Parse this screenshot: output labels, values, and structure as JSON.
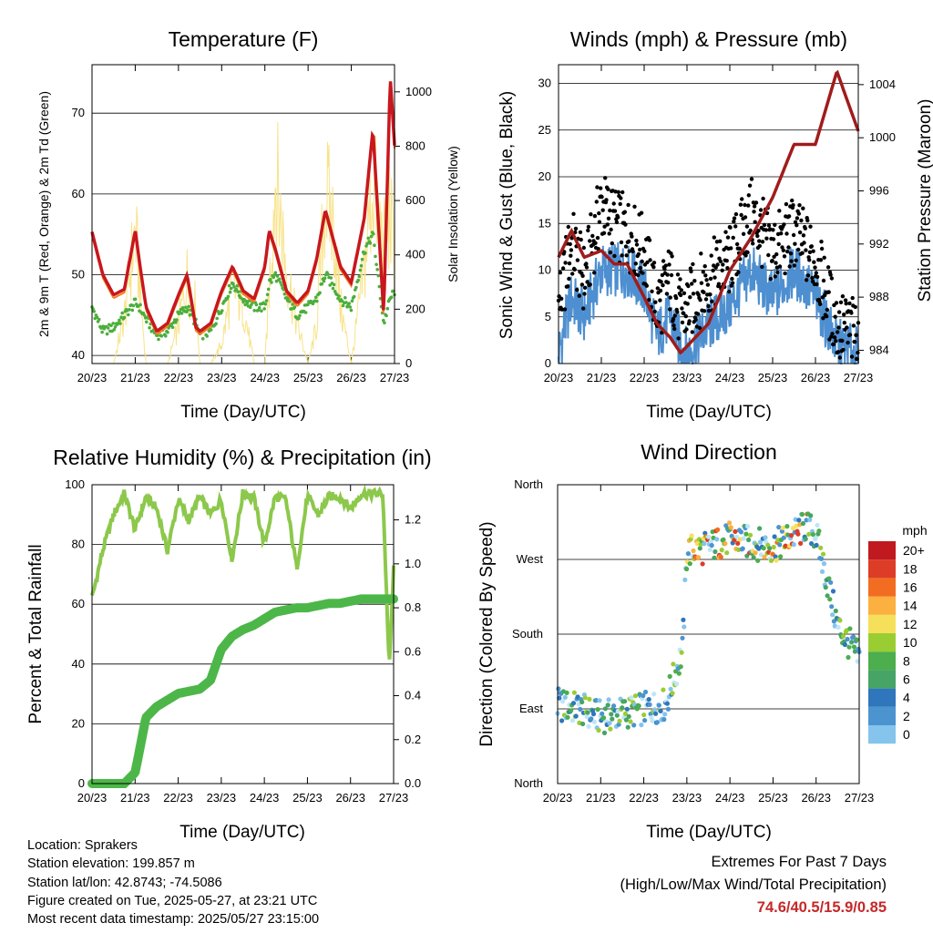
{
  "colors": {
    "temp_2m": "#c8171e",
    "temp_9m": "#f47b20",
    "dewpoint": "#4cae3c",
    "solar": "#f8e38a",
    "gust": "#000000",
    "wind": "#4d8fd0",
    "pressure": "#a01c1c",
    "rh": "#8cc84b",
    "precip": "#4cb748",
    "speed_scale": [
      "#bfe6f8",
      "#85c4ec",
      "#4c94d0",
      "#2f76bd",
      "#46a467",
      "#4cae4c",
      "#9acd32",
      "#f6e05b",
      "#fbb040",
      "#f26d21",
      "#dd3d27",
      "#c0191f",
      "#9e1a1f"
    ]
  },
  "x_ticks": [
    "20/23",
    "21/23",
    "22/23",
    "23/23",
    "24/23",
    "25/23",
    "26/23",
    "27/23"
  ],
  "charts": {
    "temperature": {
      "title": "Temperature (F)",
      "xlabel": "Time (Day/UTC)",
      "ylabel_left": "2m & 9m T (Red, Orange) & 2m Td (Green)",
      "ylabel_right": "Solar Insolation (Yellow)",
      "left_ticks": [
        "40",
        "50",
        "60",
        "70"
      ],
      "right_ticks": [
        "0",
        "200",
        "400",
        "600",
        "800",
        "1000"
      ]
    },
    "winds": {
      "title": "Winds (mph) & Pressure (mb)",
      "xlabel": "Time (Day/UTC)",
      "ylabel_left": "Sonic Wind & Gust (Blue, Black)",
      "ylabel_right": "Station Pressure (Maroon)",
      "left_ticks": [
        "0",
        "5",
        "10",
        "15",
        "20",
        "25",
        "30"
      ],
      "right_ticks": [
        "984",
        "988",
        "992",
        "996",
        "1000",
        "1004"
      ]
    },
    "humidity": {
      "title": "Relative Humidity (%) & Precipitation (in)",
      "xlabel": "Time (Day/UTC)",
      "ylabel_left": "Percent & Total Rainfall",
      "left_ticks": [
        "0",
        "20",
        "40",
        "60",
        "80",
        "100"
      ],
      "right_ticks": [
        "0.0",
        "0.2",
        "0.4",
        "0.6",
        "0.8",
        "1.0",
        "1.2"
      ]
    },
    "direction": {
      "title": "Wind Direction",
      "xlabel": "Time (Day/UTC)",
      "ylabel_left": "Direction (Colored By Speed)",
      "left_ticks": [
        "North",
        "East",
        "South",
        "West",
        "North"
      ],
      "legend_title": "mph",
      "legend_labels": [
        "0",
        "2",
        "4",
        "6",
        "8",
        "10",
        "12",
        "14",
        "16",
        "18",
        "20+"
      ]
    }
  },
  "chart_data": [
    {
      "type": "line",
      "title": "Temperature (F)",
      "x": [
        0,
        0.25,
        0.5,
        0.75,
        1,
        1.1,
        1.25,
        1.5,
        1.75,
        2,
        2.2,
        2.4,
        2.5,
        2.75,
        3,
        3.25,
        3.5,
        3.75,
        4,
        4.1,
        4.25,
        4.5,
        4.75,
        5,
        5.2,
        5.4,
        5.6,
        5.75,
        6,
        6.3,
        6.5,
        6.75,
        6.9,
        7
      ],
      "series": [
        {
          "values": [
            55.3,
            50,
            47.5,
            48.2,
            55.5,
            51.5,
            46,
            43,
            44,
            47.5,
            50,
            43.5,
            43,
            44,
            48,
            51,
            48,
            47,
            51,
            55.5,
            53,
            48,
            46.5,
            48,
            52,
            58,
            54,
            51,
            49,
            57,
            68,
            45,
            74.5,
            66
          ]
        },
        {
          "values": [
            46,
            43,
            43.5,
            45,
            46.5,
            46,
            44.5,
            42.5,
            43,
            45,
            46,
            44,
            42.5,
            43,
            46,
            49,
            47,
            46,
            46,
            49,
            50,
            47,
            45,
            46,
            47,
            50,
            48.5,
            47,
            46,
            53,
            55,
            44,
            47,
            48
          ]
        },
        {
          "values": [
            0,
            0,
            0,
            250,
            700,
            400,
            0,
            0,
            0,
            200,
            450,
            300,
            0,
            0,
            100,
            400,
            300,
            0,
            0,
            400,
            1000,
            500,
            200,
            0,
            200,
            900,
            700,
            300,
            0,
            500,
            950,
            600,
            800,
            500
          ]
        }
      ],
      "ylim": [
        39,
        76
      ],
      "y2lim": [
        0,
        1100
      ]
    },
    {
      "type": "scatter",
      "title": "Winds (mph) & Pressure (mb)",
      "x": [
        0,
        0.3,
        0.6,
        1,
        1.3,
        1.6,
        2,
        2.3,
        2.6,
        2.85,
        3,
        3.5,
        4,
        4.5,
        5,
        5.5,
        6,
        6.5,
        7
      ],
      "series": [
        {
          "values": [
            6,
            13,
            9,
            17,
            15,
            14,
            12,
            6,
            9,
            5,
            6,
            9,
            11,
            16,
            12,
            14,
            11,
            4,
            3
          ]
        },
        {
          "values": [
            1,
            7,
            5,
            10,
            10,
            10,
            8,
            3,
            5,
            2,
            1,
            4,
            6,
            10,
            7,
            10,
            7,
            2,
            1
          ]
        },
        {
          "values": [
            991,
            993,
            991,
            991.5,
            990.5,
            990.5,
            988,
            986,
            985,
            983.8,
            984.3,
            986,
            990,
            992.5,
            995.5,
            999.5,
            999.5,
            1005,
            1000.5
          ]
        }
      ],
      "ylim": [
        0,
        32
      ],
      "y2lim": [
        983,
        1005.5
      ]
    },
    {
      "type": "line",
      "title": "Relative Humidity (%) & Precipitation (in)",
      "x": [
        0,
        0.25,
        0.5,
        0.75,
        1,
        1.25,
        1.5,
        1.75,
        2,
        2.25,
        2.5,
        2.75,
        3,
        3.25,
        3.5,
        3.75,
        4,
        4.25,
        4.5,
        4.75,
        5,
        5.25,
        5.5,
        5.75,
        6,
        6.25,
        6.5,
        6.75,
        6.9,
        7
      ],
      "series": [
        {
          "values": [
            62,
            78,
            90,
            97,
            85,
            96,
            92,
            78,
            95,
            88,
            96,
            90,
            95,
            75,
            97,
            96,
            80,
            96,
            95,
            72,
            96,
            90,
            96,
            96,
            92,
            97,
            97,
            97,
            38,
            72
          ]
        },
        {
          "values": [
            0,
            0,
            0,
            0,
            0.05,
            0.3,
            0.35,
            0.38,
            0.41,
            0.42,
            0.43,
            0.47,
            0.61,
            0.67,
            0.7,
            0.72,
            0.75,
            0.78,
            0.79,
            0.8,
            0.8,
            0.81,
            0.82,
            0.82,
            0.83,
            0.84,
            0.84,
            0.84,
            0.84,
            0.84
          ]
        }
      ],
      "ylim": [
        0,
        100
      ],
      "y2lim": [
        0,
        1.36
      ]
    },
    {
      "type": "scatter",
      "title": "Wind Direction",
      "x": [
        0,
        0.5,
        1,
        1.5,
        2,
        2.5,
        2.9,
        3,
        3.5,
        4,
        4.5,
        5,
        5.5,
        5.75,
        6,
        6.5,
        7
      ],
      "series": [
        {
          "values": [
            95,
            90,
            80,
            85,
            90,
            95,
            160,
            280,
            285,
            295,
            290,
            285,
            300,
            310,
            300,
            190,
            150
          ]
        }
      ],
      "ylim": [
        0,
        360
      ]
    }
  ],
  "info": {
    "location": "Location: Sprakers",
    "elevation": "Station elevation: 199.857 m",
    "latlon": "Station lat/lon: 42.8743; -74.5086",
    "created": "Figure created on Tue, 2025-05-27, at 23:21 UTC",
    "recent": "Most recent data timestamp: 2025/05/27 23:15:00"
  },
  "extremes": {
    "line1": "Extremes For Past 7 Days",
    "line2": "(High/Low/Max Wind/Total Precipitation)",
    "values": "74.6/40.5/15.9/0.85"
  }
}
